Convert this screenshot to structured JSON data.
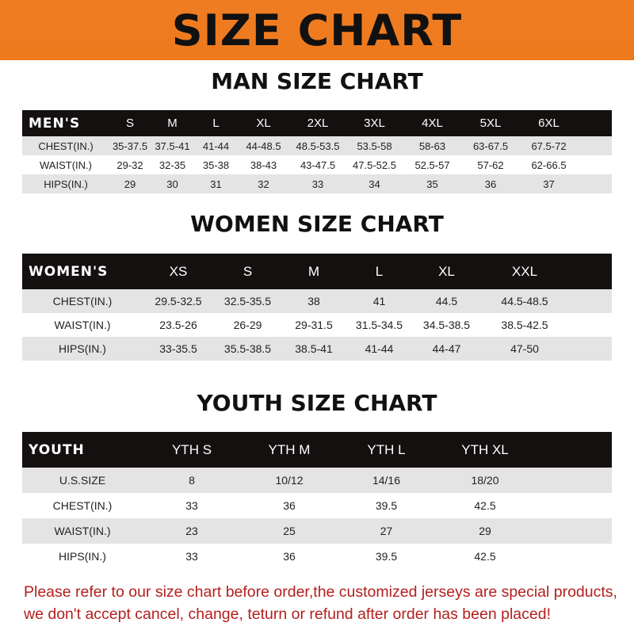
{
  "banner": {
    "title": "SIZE CHART",
    "color": "#ef7b20"
  },
  "men": {
    "title": "MAN SIZE CHART",
    "header": [
      "MEN'S",
      "S",
      "M",
      "L",
      "XL",
      "2XL",
      "3XL",
      "4XL",
      "5XL",
      "6XL"
    ],
    "rows": [
      [
        "CHEST(IN.)",
        "35-37.5",
        "37.5-41",
        "41-44",
        "44-48.5",
        "48.5-53.5",
        "53.5-58",
        "58-63",
        "63-67.5",
        "67.5-72"
      ],
      [
        "WAIST(IN.)",
        "29-32",
        "32-35",
        "35-38",
        "38-43",
        "43-47.5",
        "47.5-52.5",
        "52.5-57",
        "57-62",
        "62-66.5"
      ],
      [
        "HIPS(IN.)",
        "29",
        "30",
        "31",
        "32",
        "33",
        "34",
        "35",
        "36",
        "37"
      ]
    ]
  },
  "women": {
    "title": "WOMEN SIZE CHART",
    "header": [
      "WOMEN'S",
      "XS",
      "S",
      "M",
      "L",
      "XL",
      "XXL"
    ],
    "rows": [
      [
        "CHEST(IN.)",
        "29.5-32.5",
        "32.5-35.5",
        "38",
        "41",
        "44.5",
        "44.5-48.5"
      ],
      [
        "WAIST(IN.)",
        "23.5-26",
        "26-29",
        "29-31.5",
        "31.5-34.5",
        "34.5-38.5",
        "38.5-42.5"
      ],
      [
        "HIPS(IN.)",
        "33-35.5",
        "35.5-38.5",
        "38.5-41",
        "41-44",
        "44-47",
        "47-50"
      ]
    ]
  },
  "youth": {
    "title": "YOUTH SIZE CHART",
    "header": [
      "YOUTH",
      "YTH S",
      "YTH M",
      "YTH L",
      "YTH XL"
    ],
    "rows": [
      [
        "U.S.SIZE",
        "8",
        "10/12",
        "14/16",
        "18/20"
      ],
      [
        "CHEST(IN.)",
        "33",
        "36",
        "39.5",
        "42.5"
      ],
      [
        "WAIST(IN.)",
        "23",
        "25",
        "27",
        "29"
      ],
      [
        "HIPS(IN.)",
        "33",
        "36",
        "39.5",
        "42.5"
      ]
    ]
  },
  "notice": {
    "line1": "Please refer to our size chart before order,the customized jerseys are special products,",
    "line2": "we don't accept cancel, change, teturn or refund after order has been placed!",
    "color": "#b3201f"
  }
}
